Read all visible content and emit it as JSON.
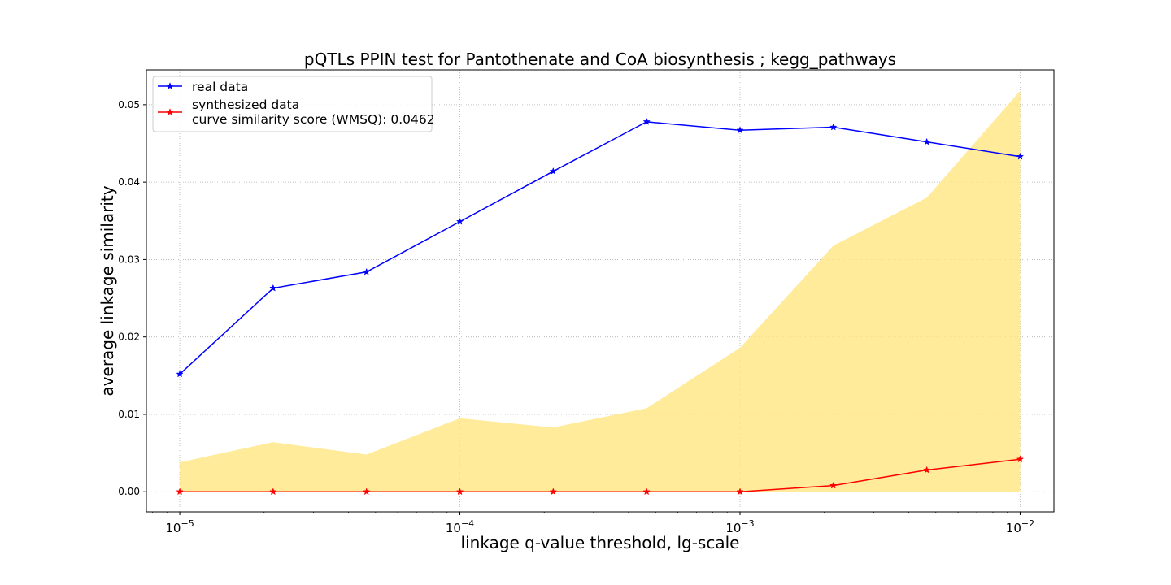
{
  "chart_data": {
    "type": "line",
    "title": "pQTLs PPIN test for Pantothenate and CoA biosynthesis ; kegg_pathways",
    "xlabel": "linkage q-value threshold, lg-scale",
    "ylabel": "average linkage similarity",
    "x_scale": "log",
    "x": [
      1e-05,
      2.154e-05,
      4.642e-05,
      0.0001,
      0.0002154,
      0.0004642,
      0.001,
      0.002154,
      0.004642,
      0.01
    ],
    "xlim": [
      7.6e-06,
      0.0132
    ],
    "ylim": [
      -0.0026,
      0.0545
    ],
    "x_ticks": [
      {
        "value": 1e-05,
        "base": "10",
        "exp": "−5"
      },
      {
        "value": 0.0001,
        "base": "10",
        "exp": "−4"
      },
      {
        "value": 0.001,
        "base": "10",
        "exp": "−3"
      },
      {
        "value": 0.01,
        "base": "10",
        "exp": "−2"
      }
    ],
    "y_ticks": [
      {
        "value": 0.0,
        "label": "0.00"
      },
      {
        "value": 0.01,
        "label": "0.01"
      },
      {
        "value": 0.02,
        "label": "0.02"
      },
      {
        "value": 0.03,
        "label": "0.03"
      },
      {
        "value": 0.04,
        "label": "0.04"
      },
      {
        "value": 0.05,
        "label": "0.05"
      }
    ],
    "grid": true,
    "legend_position": "top-left",
    "series": [
      {
        "name": "real data",
        "color": "#0000ff",
        "marker": "star",
        "values": [
          0.0152,
          0.0263,
          0.0284,
          0.0349,
          0.0414,
          0.0478,
          0.0467,
          0.0471,
          0.0452,
          0.0433
        ]
      },
      {
        "name": "synthesized data",
        "color": "#ff0000",
        "marker": "star",
        "values": [
          0.0,
          0.0,
          0.0,
          0.0,
          0.0,
          0.0,
          0.0,
          0.0008,
          0.0028,
          0.0042
        ]
      }
    ],
    "band": {
      "color": "#ffe680",
      "lower": [
        0.0,
        0.0,
        0.0,
        0.0,
        0.0,
        0.0,
        0.0,
        0.0,
        0.0,
        0.0
      ],
      "upper": [
        0.0038,
        0.0064,
        0.0048,
        0.0095,
        0.0083,
        0.0108,
        0.0186,
        0.0318,
        0.038,
        0.0518
      ]
    },
    "legend_extra_line": "curve similarity score (WMSQ): 0.0462"
  }
}
